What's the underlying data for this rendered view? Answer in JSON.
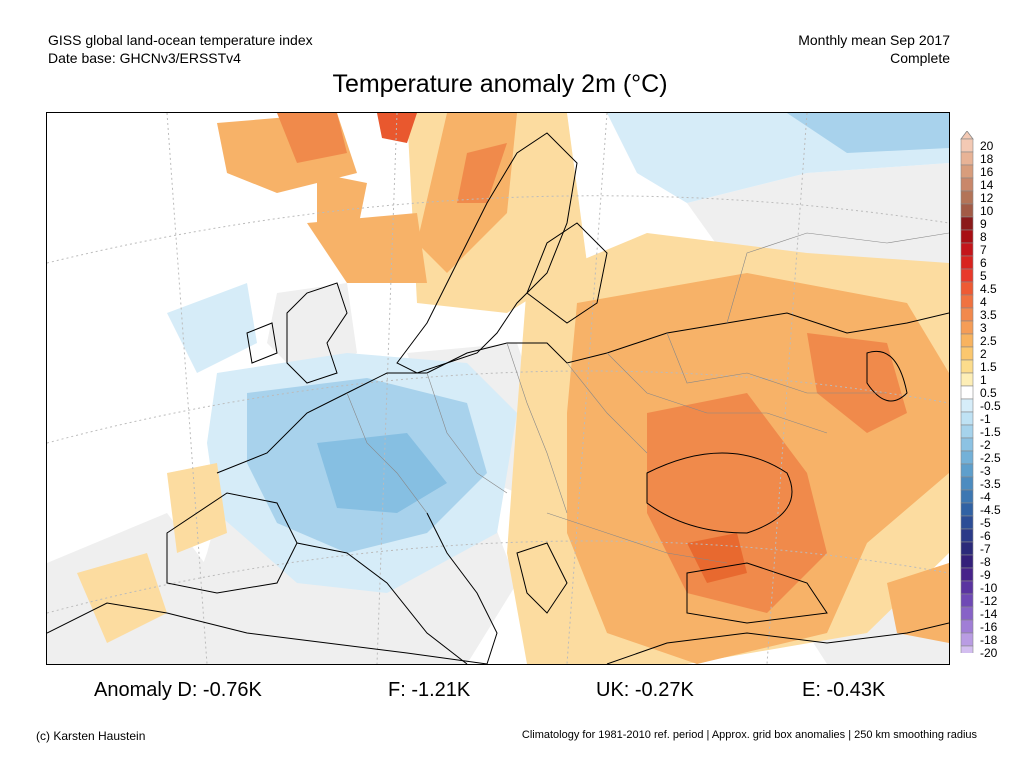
{
  "header": {
    "line1_left": "GISS global land-ocean temperature index",
    "line2_left": "Date base: GHCNv3/ERSSTv4",
    "line1_right": "Monthly mean Sep 2017",
    "line2_right": "Complete"
  },
  "title": "Temperature anomaly 2m (°C)",
  "legend": {
    "labels": [
      "20",
      "18",
      "16",
      "14",
      "12",
      "10",
      "9",
      "8",
      "7",
      "6",
      "5",
      "4.5",
      "4",
      "3.5",
      "3",
      "2.5",
      "2",
      "1.5",
      "1",
      "0.5",
      "-0.5",
      "-1",
      "-1.5",
      "-2",
      "-2.5",
      "-3",
      "-3.5",
      "-4",
      "-4.5",
      "-5",
      "-6",
      "-7",
      "-8",
      "-9",
      "-10",
      "-12",
      "-14",
      "-16",
      "-18",
      "-20"
    ],
    "colors": [
      "#f3c9b4",
      "#e8b396",
      "#d89d7c",
      "#c9876a",
      "#b37458",
      "#a25b46",
      "#8b1a1a",
      "#a80f14",
      "#c4151b",
      "#d8231f",
      "#e8392b",
      "#ee5a34",
      "#f07240",
      "#f2894d",
      "#f59d57",
      "#f8b35f",
      "#fbc76e",
      "#fcdc8c",
      "#fdeeb6",
      "#ffffff",
      "#d6edf9",
      "#bfe2f4",
      "#a6d3ec",
      "#8cc2e3",
      "#74b1d8",
      "#5e9fcc",
      "#4c8cc0",
      "#3d77b2",
      "#3162a4",
      "#2c4d96",
      "#2b3a88",
      "#2b2a7a",
      "#34207a",
      "#47238a",
      "#5a34a0",
      "#6f49b5",
      "#8762c7",
      "#a07ed6",
      "#b99ce3",
      "#d3bef0"
    ]
  },
  "anomalies": {
    "d": "Anomaly D: -0.76K",
    "f": "F: -1.21K",
    "uk": "UK: -0.27K",
    "e": "E: -0.43K"
  },
  "footer": {
    "left": "(c) Karsten Haustein",
    "right": "Climatology for 1981-2010 ref. period | Approx. grid box anomalies | 250 km smoothing radius"
  },
  "colors": {
    "warm_strong": "#f08a4b",
    "warm_mid": "#f7b268",
    "warm_light": "#fcdca0",
    "cool_light": "#d6ecf8",
    "cool_mid": "#a8d2ec",
    "cool_strong": "#86bfe2",
    "no_data": "#eeeeee"
  }
}
